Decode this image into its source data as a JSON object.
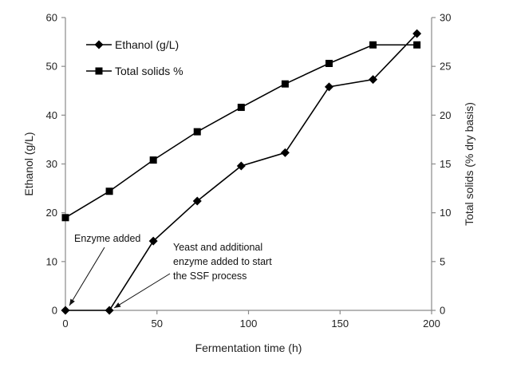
{
  "chart_data": {
    "type": "line",
    "title": "",
    "xlabel": "Fermentation time (h)",
    "ylabel": "Ethanol (g/L)",
    "y2label": "Total solids (% dry basis)",
    "xlim": [
      0,
      200
    ],
    "ylim": [
      0,
      60
    ],
    "y2lim": [
      0,
      30
    ],
    "x_ticks": [
      "0",
      "50",
      "100",
      "150",
      "200"
    ],
    "y_ticks": [
      "0",
      "10",
      "20",
      "30",
      "40",
      "50",
      "60"
    ],
    "y2_ticks": [
      "0",
      "5",
      "10",
      "15",
      "20",
      "25",
      "30"
    ],
    "legend_position": "top-left",
    "grid": false,
    "series": [
      {
        "name": "Ethanol (g/L)",
        "axis": "left",
        "marker": "diamond",
        "color": "#000000",
        "x": [
          0,
          24,
          48,
          72,
          96,
          120,
          144,
          168,
          192
        ],
        "y": [
          0,
          0,
          14.2,
          22.4,
          29.6,
          32.3,
          45.8,
          47.3,
          56.7
        ]
      },
      {
        "name": "Total solids %",
        "axis": "right",
        "marker": "square",
        "color": "#000000",
        "x": [
          0,
          24,
          48,
          72,
          96,
          120,
          144,
          168,
          192
        ],
        "y": [
          9.5,
          12.2,
          15.4,
          18.3,
          20.8,
          23.2,
          25.3,
          27.2,
          27.2
        ]
      }
    ],
    "annotations": [
      {
        "id": "enzyme",
        "lines": [
          "Enzyme added"
        ],
        "target_x": 0,
        "target_y": 0
      },
      {
        "id": "yeast",
        "lines": [
          "Yeast and additional",
          "enzyme added to start",
          "the SSF process"
        ],
        "target_x": 24,
        "target_y": 0
      }
    ]
  }
}
